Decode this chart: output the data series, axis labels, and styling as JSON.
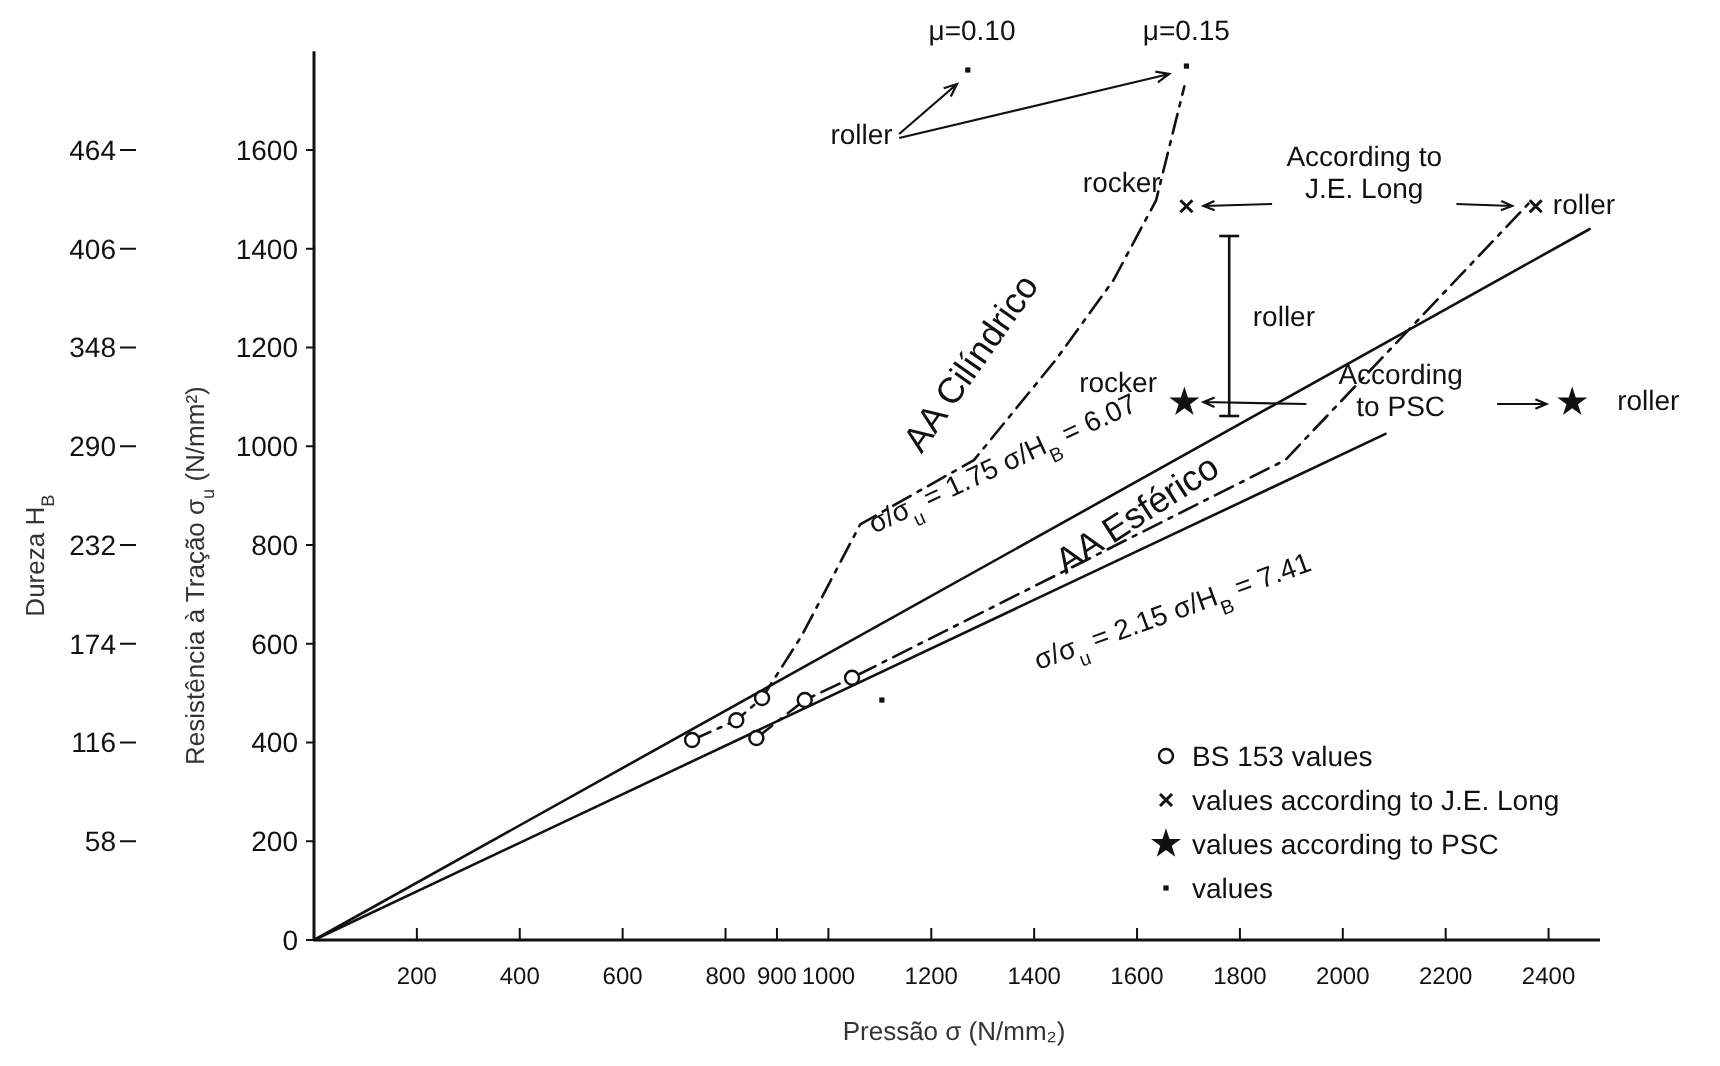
{
  "chart_data": {
    "type": "line",
    "xlabel": "Pressão σ (N/mm₂)",
    "ylabel": "Resistência à Tração σ$_{u}$ (N/mm²)",
    "y2label": "Dureza H$_{B}$",
    "xlim": [
      0,
      2500
    ],
    "xticks": [
      200,
      400,
      600,
      800,
      900,
      1000,
      1200,
      1400,
      1600,
      1800,
      2000,
      2200,
      2400
    ],
    "ylim": [
      0,
      1800
    ],
    "yticks": [
      0,
      200,
      400,
      600,
      800,
      1000,
      1200,
      1400,
      1600
    ],
    "y2lim": [
      0,
      522
    ],
    "y2ticks": [
      58,
      116,
      174,
      232,
      290,
      348,
      406,
      464
    ],
    "grid": false,
    "legend": "bottom right",
    "line_style": "solid",
    "marker": "none",
    "series": [
      {
        "type": "line",
        "color": "#111111",
        "x": [
          0,
          2480
        ],
        "values": [
          0,
          1440
        ]
      },
      {
        "type": "line",
        "color": "#111111",
        "x": [
          0,
          2083
        ],
        "values": [
          0,
          1025
        ]
      },
      {
        "type": "line",
        "color": "#111111",
        "line_style": "dashed",
        "x": [
          735,
          821,
          871,
          948,
          1062,
          1283,
          1442,
          1554,
          1637,
          1692
        ],
        "values": [
          405,
          445,
          490,
          616,
          842,
          972,
          1175,
          1336,
          1498,
          1729
        ]
      },
      {
        "type": "line",
        "color": "#111111",
        "line_style": "dashed",
        "x": [
          860,
          954,
          1046,
          1888,
          2367
        ],
        "values": [
          409,
          486,
          531,
          972,
          1498
        ]
      },
      {
        "type": "scatter",
        "name": "BS 153 values",
        "marker": "circle",
        "color": "#111111",
        "x": [
          735,
          821,
          871,
          860,
          954,
          1046
        ],
        "values": [
          405,
          445,
          490,
          409,
          486,
          531
        ]
      },
      {
        "type": "scatter",
        "name": "values according to J.E. Long",
        "marker": "cross",
        "color": "#111111",
        "x": [
          1696,
          2375
        ],
        "values": [
          1486,
          1486
        ]
      },
      {
        "type": "scatter",
        "name": "values according to PSC",
        "marker": "star",
        "color": "#111111",
        "x": [
          1692,
          2446
        ],
        "values": [
          1089,
          1089
        ]
      },
      {
        "type": "scatter",
        "name": "values",
        "marker": "square",
        "color": "#111111",
        "x": [
          1271,
          1696,
          1104
        ],
        "values": [
          1762,
          1770,
          486
        ]
      }
    ],
    "annotations": [
      "μ=0.10",
      "μ=0.15",
      "roller",
      "rocker",
      "According to\nJ.E. Long",
      "roller",
      "roller",
      "rocker",
      "According\nto PSC",
      "roller",
      "AA Cilíndrico",
      "σ/σ$_{u}$ = 1.75 σ/H$_{B}$ = 6.07",
      "AA Esférico",
      "σ/σ$_{u}$ = 2.15 σ/H$_{B}$ = 7.41"
    ]
  }
}
